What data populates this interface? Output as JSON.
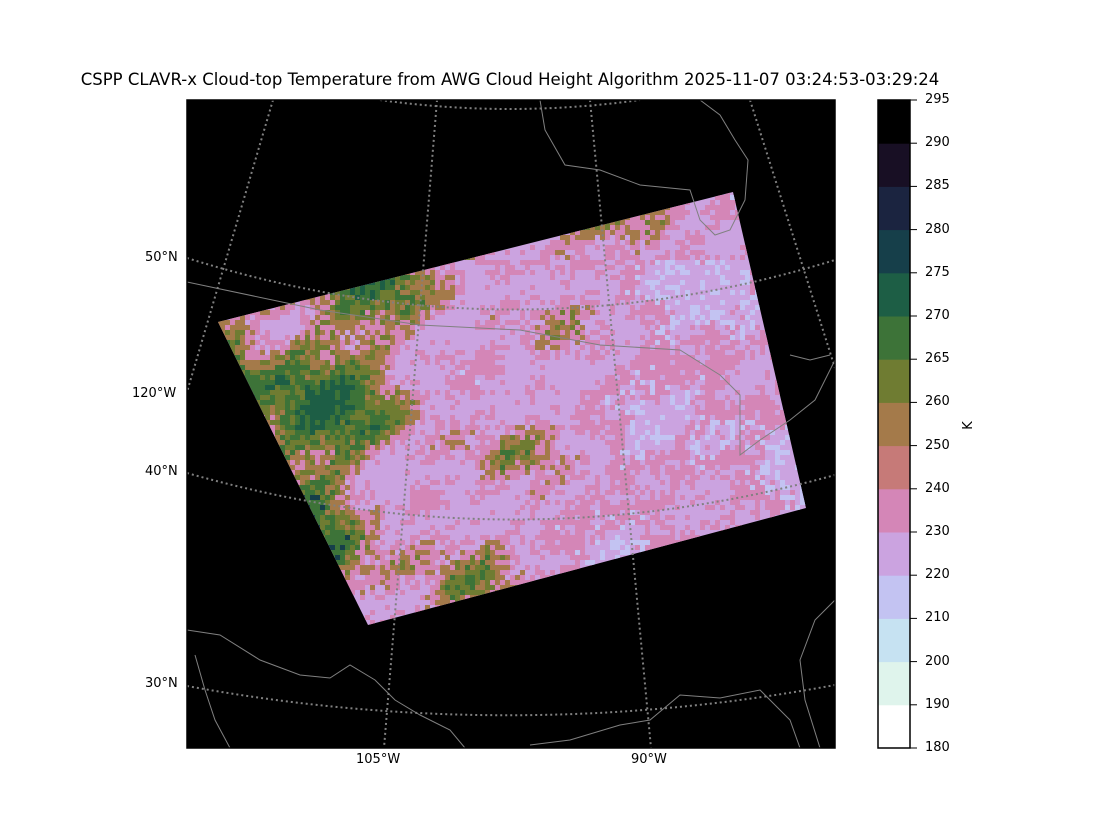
{
  "title": "CSPP CLAVR-x Cloud-top Temperature from AWG Cloud Height Algorithm 2025-11-07 03:24:53-03:29:24",
  "map": {
    "lat_labels": [
      "50°N",
      "40°N",
      "30°N"
    ],
    "lon_labels": [
      "120°W",
      "105°W",
      "90°W"
    ],
    "background": "#000000",
    "gridline_color": "#808080",
    "coastline_color": "#808080"
  },
  "colorbar": {
    "label": "K",
    "ticks": [
      "180",
      "190",
      "200",
      "210",
      "220",
      "230",
      "240",
      "250",
      "260",
      "265",
      "270",
      "275",
      "280",
      "285",
      "290",
      "295"
    ],
    "colors": [
      "#ffffff",
      "#dff4ec",
      "#c6e2f2",
      "#c3c3f2",
      "#cba3e0",
      "#d486b7",
      "#c67a78",
      "#a47a4a",
      "#6f7c32",
      "#3d7338",
      "#1d5e45",
      "#163f4a",
      "#1b2440",
      "#180f24",
      "#000000"
    ]
  }
}
